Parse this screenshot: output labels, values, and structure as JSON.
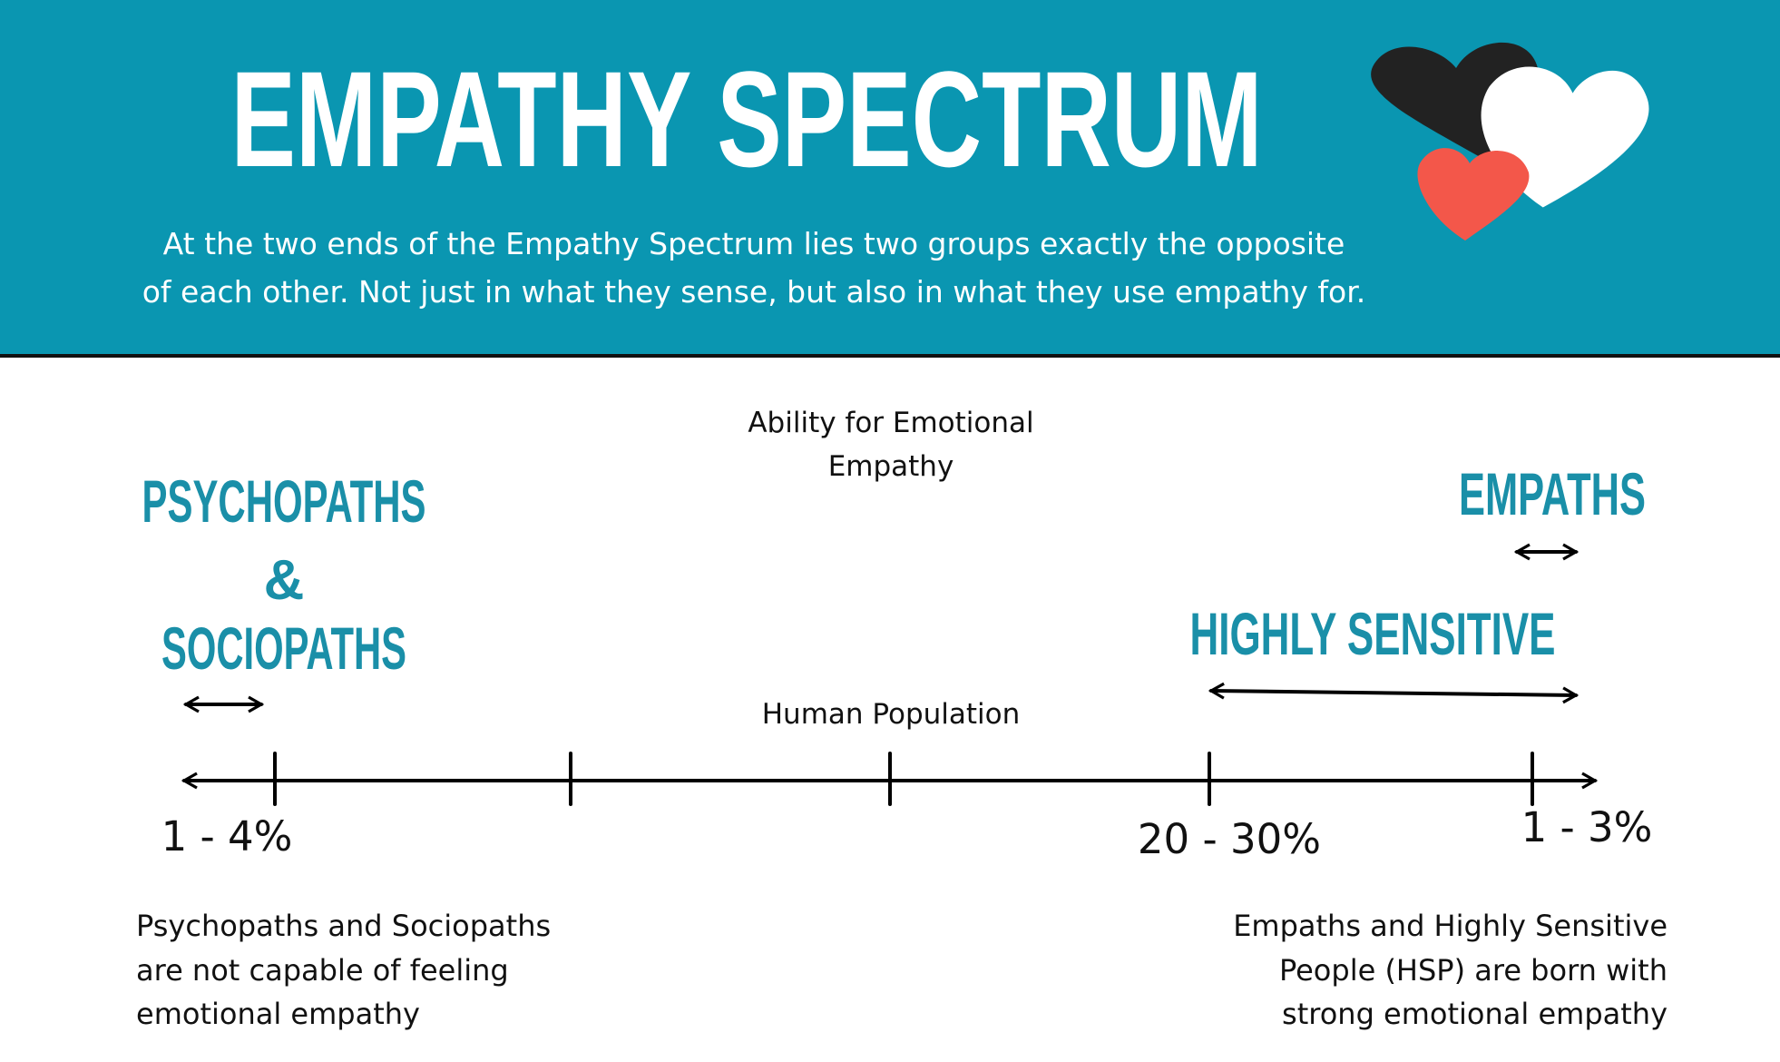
{
  "header": {
    "title": "EMPATHY SPECTRUM",
    "subtitle_lines": [
      "At the two ends of the Empathy Spectrum lies two groups exactly the opposite",
      "of each other. Not just in what they sense, but also in what they use empathy for."
    ]
  },
  "axis": {
    "label_lines": [
      "Ability for Emotional",
      "Empathy"
    ],
    "population_label": "Human Population"
  },
  "groups": {
    "left": {
      "label_lines": [
        "PSYCHOPATHS",
        "&",
        "SOCIOPATHS"
      ],
      "share": "1 - 4%",
      "note_lines": [
        "Psychopaths and Sociopaths",
        "are not capable of feeling",
        "emotional empathy"
      ]
    },
    "highly_sensitive": {
      "label": "HIGHLY SENSITIVE",
      "share": "20 - 30%"
    },
    "empaths": {
      "label": "EMPATHS",
      "share": "1 - 3%"
    },
    "right_note_lines": [
      "Empaths and Highly Sensitive",
      "People (HSP) are born with",
      "strong emotional empathy"
    ]
  }
}
